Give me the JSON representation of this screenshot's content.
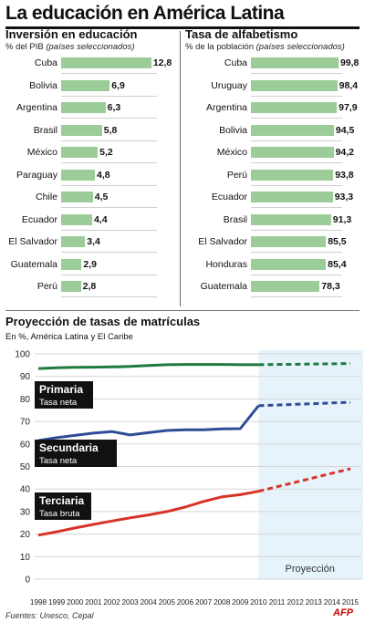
{
  "title": "La educación en América Latina",
  "left_panel": {
    "title": "Inversión en educación",
    "subtitle_plain": "% del PIB ",
    "subtitle_italic": "(países seleccionados)"
  },
  "right_panel": {
    "title": "Tasa de alfabetismo",
    "subtitle_plain": "% de la población ",
    "subtitle_italic": "(países seleccionados)"
  },
  "projection": {
    "title": "Proyección de tasas de matrículas",
    "subtitle": "En %, América Latina y El Caribe",
    "projection_label": "Proyección",
    "series_labels": [
      {
        "name": "Primaria",
        "sub": "Tasa neta"
      },
      {
        "name": "Secundaria",
        "sub": "Tasa neta"
      },
      {
        "name": "Terciaria",
        "sub": "Tasa bruta"
      }
    ]
  },
  "footer": "Fuentes: Unesco, Cepal",
  "logo": "AFP",
  "colors": {
    "bar": "#9ccc97",
    "primaria": "#1f7a3f",
    "secundaria": "#2f4d96",
    "terciaria": "#d93327",
    "projection_bg": "#e6f3fb"
  },
  "chart_data": [
    {
      "type": "bar",
      "title": "Inversión en educación",
      "ylabel": "% del PIB (países seleccionados)",
      "categories": [
        "Cuba",
        "Bolivia",
        "Argentina",
        "Brasil",
        "México",
        "Paraguay",
        "Chile",
        "Ecuador",
        "El Salvador",
        "Guatemala",
        "Perú"
      ],
      "values": [
        12.8,
        6.9,
        6.3,
        5.8,
        5.2,
        4.8,
        4.5,
        4.4,
        3.4,
        2.9,
        2.8
      ],
      "labels": [
        "12,8",
        "6,9",
        "6,3",
        "5,8",
        "5,2",
        "4,8",
        "4,5",
        "4,4",
        "3,4",
        "2,9",
        "2,8"
      ],
      "orientation": "horizontal"
    },
    {
      "type": "bar",
      "title": "Tasa de alfabetismo",
      "ylabel": "% de la población (países seleccionados)",
      "categories": [
        "Cuba",
        "Uruguay",
        "Argentina",
        "Bolivia",
        "México",
        "Perú",
        "Ecuador",
        "Brasil",
        "El Salvador",
        "Honduras",
        "Guatemala"
      ],
      "values": [
        99.8,
        98.4,
        97.9,
        94.5,
        94.2,
        93.8,
        93.3,
        91.3,
        85.5,
        85.4,
        78.3
      ],
      "labels": [
        "99,8",
        "98,4",
        "97,9",
        "94,5",
        "94,2",
        "93,8",
        "93,3",
        "91,3",
        "85,5",
        "85,4",
        "78,3"
      ],
      "orientation": "horizontal"
    },
    {
      "type": "line",
      "title": "Proyección de tasas de matrículas",
      "subtitle": "En %, América Latina y El Caribe",
      "x": [
        1998,
        1999,
        2000,
        2001,
        2002,
        2003,
        2004,
        2005,
        2006,
        2007,
        2008,
        2009,
        2010,
        2011,
        2012,
        2013,
        2014,
        2015
      ],
      "ylim": [
        0,
        100
      ],
      "yticks": [
        0,
        10,
        20,
        30,
        40,
        50,
        60,
        70,
        80,
        90,
        100
      ],
      "projection_from": 2010,
      "series": [
        {
          "name": "Primaria",
          "values": [
            93.5,
            93.8,
            94.0,
            94.1,
            94.2,
            94.4,
            94.8,
            95.2,
            95.3,
            95.3,
            95.3,
            95.2,
            95.2,
            95.3,
            95.4,
            95.5,
            95.6,
            95.7
          ]
        },
        {
          "name": "Secundaria",
          "values": [
            61.5,
            62.8,
            63.8,
            64.8,
            65.5,
            64.0,
            65.0,
            66.0,
            66.3,
            66.3,
            66.7,
            66.8,
            77.0,
            77.3,
            77.6,
            77.9,
            78.2,
            78.5
          ]
        },
        {
          "name": "Terciaria",
          "values": [
            19.5,
            21.0,
            22.7,
            24.3,
            25.8,
            27.2,
            28.5,
            30.0,
            32.0,
            34.5,
            36.5,
            37.5,
            39.0,
            41.0,
            43.0,
            45.0,
            47.0,
            49.0
          ]
        }
      ]
    }
  ]
}
